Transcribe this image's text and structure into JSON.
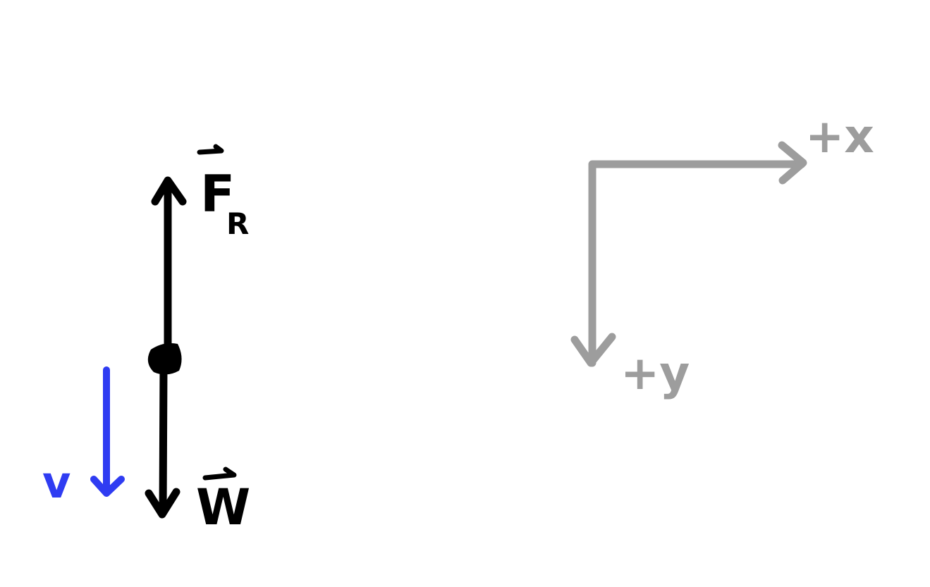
{
  "diagram": {
    "forces": {
      "resistance_label_main": "F",
      "resistance_label_sub": "R",
      "weight_label": "W"
    },
    "velocity_label": "v",
    "axes": {
      "x_label": "+x",
      "y_label": "+y"
    },
    "colors": {
      "force": "#000000",
      "velocity": "#2f3cf2",
      "axes": "#9d9d9d"
    }
  }
}
